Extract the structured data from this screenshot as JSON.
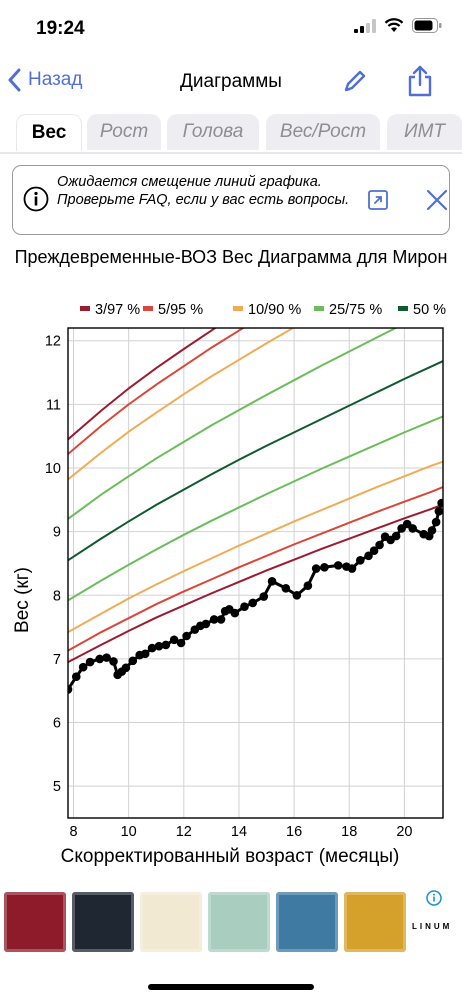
{
  "status_bar": {
    "time": "19:24"
  },
  "nav": {
    "back_label": "Назад",
    "title": "Диаграммы"
  },
  "tabs": [
    {
      "label": "Вес",
      "active": true
    },
    {
      "label": "Рост",
      "active": false
    },
    {
      "label": "Голова",
      "active": false
    },
    {
      "label": "Вес/Рост",
      "active": false
    },
    {
      "label": "ИМТ",
      "active": false
    }
  ],
  "notice": {
    "text": "Ожидается смещение линий графика. Проверьте FAQ, если у вас есть вопросы."
  },
  "chart_data": {
    "type": "line",
    "title": "Преждевременные-ВОЗ Вес Диаграмма для Мирон",
    "xlabel": "Скорректированный возраст (месяцы)",
    "ylabel": "Вес (кг)",
    "xlim": [
      7.8,
      21.4
    ],
    "ylim": [
      4.5,
      12.2
    ],
    "x_ticks": [
      8,
      10,
      12,
      14,
      16,
      18,
      20
    ],
    "y_ticks": [
      5,
      6,
      7,
      8,
      9,
      10,
      11,
      12
    ],
    "grid": true,
    "legend_position": "top",
    "legend": [
      {
        "label": "3/97 %",
        "color": "#9b1b30"
      },
      {
        "label": "5/95 %",
        "color": "#d9463a"
      },
      {
        "label": "10/90 %",
        "color": "#f0ac55"
      },
      {
        "label": "25/75 %",
        "color": "#6bbd5b"
      },
      {
        "label": "50 %",
        "color": "#0f5a2f"
      }
    ],
    "reference_lines": [
      {
        "group": "3/97 %",
        "color": "#9b1b30",
        "x": [
          7.8,
          9,
          10,
          11,
          12,
          13,
          14,
          15,
          16,
          17,
          18,
          19,
          20,
          21,
          21.4
        ],
        "y": [
          6.95,
          7.22,
          7.44,
          7.65,
          7.84,
          8.03,
          8.21,
          8.39,
          8.56,
          8.73,
          8.89,
          9.05,
          9.21,
          9.36,
          9.43
        ]
      },
      {
        "group": "5/95 %",
        "color": "#d9463a",
        "x": [
          7.8,
          9,
          10,
          11,
          12,
          13,
          14,
          15,
          16,
          17,
          18,
          19,
          20,
          21,
          21.4
        ],
        "y": [
          7.13,
          7.42,
          7.64,
          7.86,
          8.06,
          8.25,
          8.44,
          8.62,
          8.8,
          8.97,
          9.14,
          9.31,
          9.47,
          9.63,
          9.7
        ]
      },
      {
        "group": "10/90 %",
        "color": "#f0ac55",
        "x": [
          7.8,
          9,
          10,
          11,
          12,
          13,
          14,
          15,
          16,
          17,
          18,
          19,
          20,
          21,
          21.4
        ],
        "y": [
          7.42,
          7.71,
          7.95,
          8.17,
          8.38,
          8.58,
          8.78,
          8.97,
          9.16,
          9.34,
          9.52,
          9.7,
          9.87,
          10.04,
          10.1
        ]
      },
      {
        "group": "25/75 %",
        "color": "#6bbd5b",
        "x": [
          7.8,
          9,
          10,
          11,
          12,
          13,
          14,
          15,
          16,
          17,
          18,
          19,
          20,
          21,
          21.4
        ],
        "y": [
          7.92,
          8.23,
          8.48,
          8.72,
          8.95,
          9.17,
          9.38,
          9.59,
          9.79,
          9.99,
          10.18,
          10.37,
          10.56,
          10.74,
          10.81
        ]
      },
      {
        "group": "50 %",
        "color": "#0f5a2f",
        "x": [
          7.8,
          9,
          10,
          11,
          12,
          13,
          14,
          15,
          16,
          17,
          18,
          19,
          20,
          21,
          21.4
        ],
        "y": [
          8.55,
          8.89,
          9.16,
          9.42,
          9.66,
          9.9,
          10.13,
          10.35,
          10.56,
          10.77,
          10.98,
          11.19,
          11.4,
          11.6,
          11.68
        ]
      },
      {
        "group": "25/75 %",
        "color": "#6bbd5b",
        "x": [
          7.8,
          9,
          10,
          11,
          12,
          13,
          14,
          15,
          16,
          17,
          18,
          19,
          20,
          21,
          21.4
        ],
        "y": [
          9.2,
          9.58,
          9.87,
          10.15,
          10.41,
          10.67,
          10.91,
          11.15,
          11.38,
          11.61,
          11.83,
          12.05,
          12.27,
          12.49,
          12.57
        ]
      },
      {
        "group": "10/90 %",
        "color": "#f0ac55",
        "x": [
          7.8,
          9,
          10,
          11,
          12,
          13,
          14,
          15,
          16,
          17
        ],
        "y": [
          9.82,
          10.24,
          10.57,
          10.87,
          11.16,
          11.44,
          11.7,
          11.96,
          12.21,
          12.46
        ]
      },
      {
        "group": "5/95 %",
        "color": "#d9463a",
        "x": [
          7.8,
          9,
          10,
          11,
          12,
          13,
          14,
          15
        ],
        "y": [
          10.22,
          10.66,
          11.0,
          11.31,
          11.6,
          11.89,
          12.16,
          12.43
        ]
      },
      {
        "group": "3/97 %",
        "color": "#9b1b30",
        "x": [
          7.8,
          9,
          10,
          11,
          12,
          13,
          14
        ],
        "y": [
          10.45,
          10.9,
          11.25,
          11.57,
          11.87,
          12.16,
          12.45
        ]
      }
    ],
    "series": [
      {
        "color": "#000000",
        "x": [
          7.8,
          8.1,
          8.35,
          8.6,
          8.95,
          9.2,
          9.45,
          9.6,
          9.75,
          9.9,
          10.15,
          10.4,
          10.6,
          10.85,
          11.1,
          11.35,
          11.65,
          11.9,
          12.1,
          12.4,
          12.6,
          12.8,
          13.1,
          13.35,
          13.5,
          13.65,
          13.85,
          14.2,
          14.5,
          14.9,
          15.2,
          15.7,
          16.1,
          16.5,
          16.8,
          17.1,
          17.6,
          17.9,
          18.1,
          18.4,
          18.7,
          18.9,
          19.1,
          19.3,
          19.5,
          19.7,
          19.9,
          20.1,
          20.3,
          20.7,
          20.9,
          21.0,
          21.15,
          21.25,
          21.35
        ],
        "y": [
          6.52,
          6.72,
          6.87,
          6.95,
          7.0,
          7.02,
          6.96,
          6.75,
          6.8,
          6.86,
          6.97,
          7.06,
          7.08,
          7.17,
          7.2,
          7.22,
          7.3,
          7.25,
          7.36,
          7.46,
          7.52,
          7.55,
          7.62,
          7.62,
          7.75,
          7.78,
          7.72,
          7.82,
          7.88,
          7.98,
          8.22,
          8.11,
          8.0,
          8.15,
          8.42,
          8.44,
          8.47,
          8.45,
          8.42,
          8.55,
          8.62,
          8.7,
          8.79,
          8.92,
          8.87,
          8.93,
          9.05,
          9.12,
          9.05,
          8.96,
          8.93,
          9.02,
          9.15,
          9.32,
          9.45
        ]
      }
    ]
  },
  "ad": {
    "colors": [
      "#8e1b2a",
      "#1f2733",
      "#f1e9d2",
      "#a9cec0",
      "#3f7aa3",
      "#d5a12b"
    ],
    "brand": "LINUM"
  }
}
